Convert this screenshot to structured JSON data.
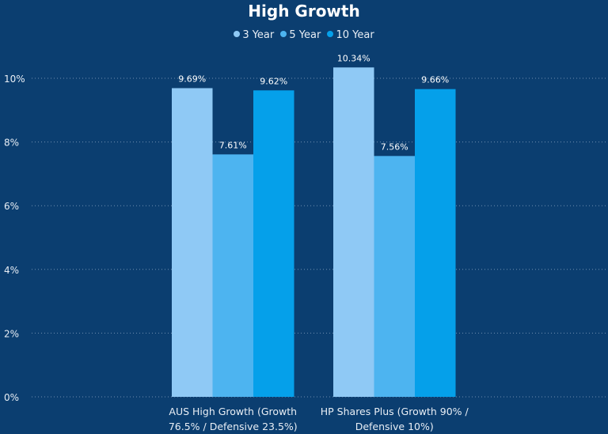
{
  "chart_data": {
    "type": "bar",
    "title": "High Growth",
    "categories": [
      "AUS High Growth (Growth 76.5% / Defensive 23.5%)",
      "HP Shares Plus (Growth 90% / Defensive 10%)"
    ],
    "category_lines": [
      [
        "AUS High Growth (Growth",
        "76.5% / Defensive 23.5%)"
      ],
      [
        "HP Shares Plus (Growth 90% /",
        "Defensive 10%)"
      ]
    ],
    "series": [
      {
        "name": "3 Year",
        "color": "#8fc9f5",
        "values": [
          9.69,
          10.34
        ],
        "labels": [
          "9.69%",
          "10.34%"
        ]
      },
      {
        "name": "5 Year",
        "color": "#4db4f0",
        "values": [
          7.61,
          7.56
        ],
        "labels": [
          "7.61%",
          "7.56%"
        ]
      },
      {
        "name": "10 Year",
        "color": "#05a0ea",
        "values": [
          9.62,
          9.66
        ],
        "labels": [
          "9.62%",
          "9.66%"
        ]
      }
    ],
    "yticks": [
      0,
      2,
      4,
      6,
      8,
      10
    ],
    "ytick_labels": [
      "0%",
      "2%",
      "4%",
      "6%",
      "8%",
      "10%"
    ],
    "ylim": [
      0,
      10
    ],
    "xlabel": "",
    "ylabel": "",
    "grid": true,
    "legend": "top-center",
    "background": "#0b3e70"
  }
}
